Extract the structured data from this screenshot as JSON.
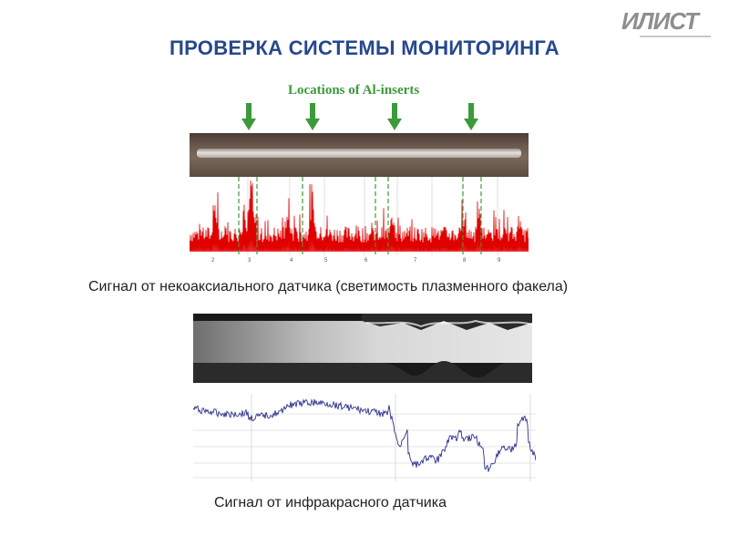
{
  "header": {
    "logo_text": "ИЛИСТ",
    "title": "ПРОВЕРКА СИСТЕМЫ МОНИТОРИНГА"
  },
  "figure1": {
    "inserts_label": "Locations of Al-inserts",
    "caption": "Сигнал от некоаксиального датчика (светимость плазменного факела)",
    "tick_labels": [
      "2",
      "3",
      "4",
      "5",
      "6",
      "7",
      "8",
      "9"
    ],
    "signal_color": "#e00000",
    "marker_color": "#3c9a3a"
  },
  "figure2": {
    "caption": "Сигнал от инфракрасного датчика",
    "signal_color": "#2c2f8c"
  },
  "colors": {
    "title": "#26488f",
    "logo": "#8e8e8e"
  }
}
